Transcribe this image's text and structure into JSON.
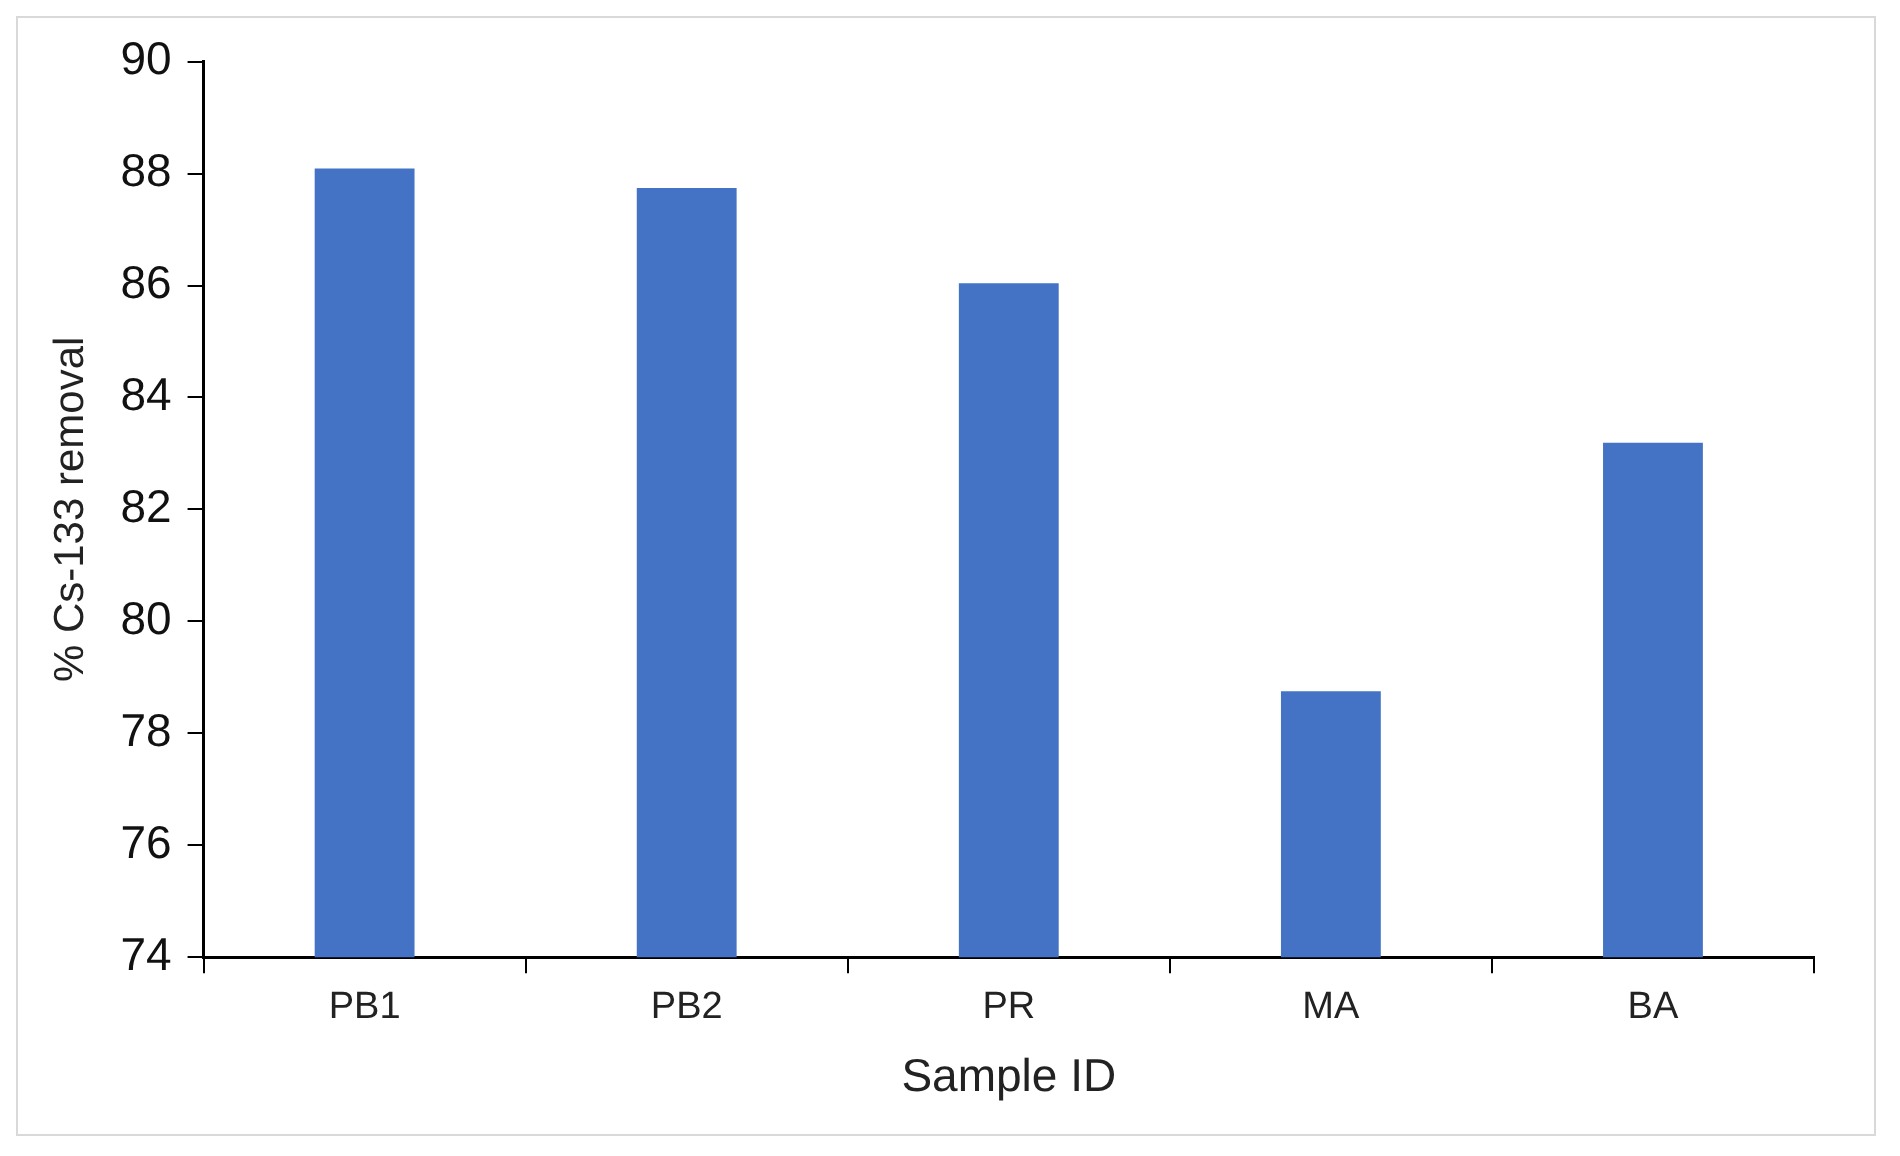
{
  "chart_data": {
    "type": "bar",
    "xlabel": "Sample ID",
    "ylabel": "% Cs-133 removal",
    "categories": [
      "PB1",
      "PB2",
      "PR",
      "MA",
      "BA"
    ],
    "values": [
      88.09,
      87.74,
      86.04,
      78.75,
      83.19
    ],
    "color": "#4472c4",
    "ylim": [
      74,
      90
    ],
    "yticks": [
      74,
      76,
      78,
      80,
      82,
      84,
      86,
      88,
      90
    ],
    "grid": false,
    "legend": false
  }
}
